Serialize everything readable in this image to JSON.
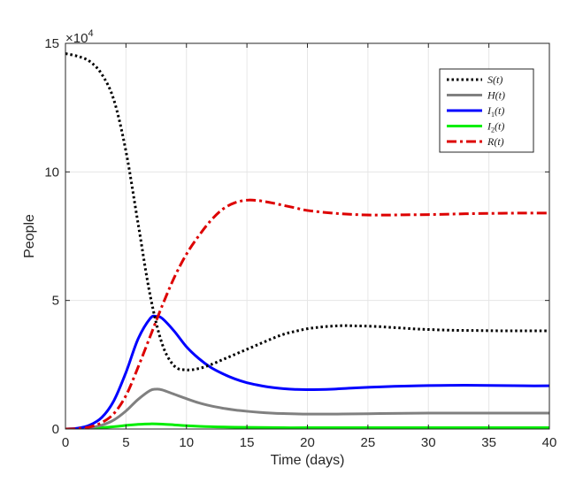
{
  "chart_data": {
    "type": "line",
    "xlabel": "Time (days)",
    "ylabel": "People",
    "xlim": [
      0,
      40
    ],
    "ylim": [
      0,
      150000
    ],
    "xticks": [
      0,
      5,
      10,
      15,
      20,
      25,
      30,
      35,
      40
    ],
    "yticks": [
      0,
      50000,
      100000,
      150000
    ],
    "ytick_labels": [
      "0",
      "5",
      "10",
      "15"
    ],
    "y_multiplier": "×10",
    "y_multiplier_exp": "4",
    "grid": true,
    "legend_position": "top-right",
    "series": [
      {
        "name": "S(t)",
        "legend": {
          "base": "S",
          "sub": "",
          "arg": "(t)"
        },
        "color": "#000000",
        "style": "dotted",
        "points": [
          [
            0,
            146000
          ],
          [
            1,
            145000
          ],
          [
            2,
            143000
          ],
          [
            3,
            138000
          ],
          [
            4,
            128000
          ],
          [
            5,
            108000
          ],
          [
            6,
            80000
          ],
          [
            7,
            52000
          ],
          [
            8,
            33000
          ],
          [
            9,
            24500
          ],
          [
            10,
            23000
          ],
          [
            11,
            23500
          ],
          [
            12,
            25000
          ],
          [
            13,
            27000
          ],
          [
            14,
            29000
          ],
          [
            15,
            31000
          ],
          [
            16,
            33000
          ],
          [
            17,
            35000
          ],
          [
            18,
            36800
          ],
          [
            19,
            38000
          ],
          [
            20,
            39000
          ],
          [
            21,
            39600
          ],
          [
            22,
            40000
          ],
          [
            23,
            40200
          ],
          [
            24,
            40100
          ],
          [
            25,
            40000
          ],
          [
            26,
            39800
          ],
          [
            27,
            39500
          ],
          [
            28,
            39200
          ],
          [
            29,
            38900
          ],
          [
            30,
            38700
          ],
          [
            32,
            38400
          ],
          [
            34,
            38300
          ],
          [
            36,
            38200
          ],
          [
            38,
            38200
          ],
          [
            40,
            38200
          ]
        ]
      },
      {
        "name": "H(t)",
        "legend": {
          "base": "H",
          "sub": "",
          "arg": "(t)"
        },
        "color": "#808080",
        "style": "solid",
        "points": [
          [
            0,
            0
          ],
          [
            1,
            100
          ],
          [
            2,
            500
          ],
          [
            3,
            1500
          ],
          [
            4,
            3500
          ],
          [
            5,
            7000
          ],
          [
            6,
            11500
          ],
          [
            7,
            15000
          ],
          [
            7.5,
            15500
          ],
          [
            8,
            15200
          ],
          [
            9,
            13500
          ],
          [
            10,
            11800
          ],
          [
            11,
            10200
          ],
          [
            12,
            9000
          ],
          [
            13,
            8100
          ],
          [
            14,
            7400
          ],
          [
            15,
            6900
          ],
          [
            16,
            6500
          ],
          [
            17,
            6200
          ],
          [
            18,
            6000
          ],
          [
            19,
            5900
          ],
          [
            20,
            5800
          ],
          [
            22,
            5800
          ],
          [
            24,
            5900
          ],
          [
            26,
            6000
          ],
          [
            28,
            6100
          ],
          [
            30,
            6200
          ],
          [
            32,
            6200
          ],
          [
            34,
            6200
          ],
          [
            36,
            6200
          ],
          [
            38,
            6200
          ],
          [
            40,
            6200
          ]
        ]
      },
      {
        "name": "I1(t)",
        "legend": {
          "base": "I",
          "sub": "1",
          "arg": "(t)"
        },
        "color": "#0000ff",
        "style": "solid",
        "points": [
          [
            0,
            0
          ],
          [
            1,
            300
          ],
          [
            2,
            1500
          ],
          [
            3,
            4500
          ],
          [
            4,
            11000
          ],
          [
            5,
            22000
          ],
          [
            6,
            35000
          ],
          [
            7,
            43000
          ],
          [
            7.5,
            43800
          ],
          [
            8,
            43000
          ],
          [
            9,
            38000
          ],
          [
            10,
            32000
          ],
          [
            11,
            27500
          ],
          [
            12,
            24000
          ],
          [
            13,
            21500
          ],
          [
            14,
            19500
          ],
          [
            15,
            18000
          ],
          [
            16,
            17000
          ],
          [
            17,
            16200
          ],
          [
            18,
            15700
          ],
          [
            19,
            15400
          ],
          [
            20,
            15300
          ],
          [
            22,
            15500
          ],
          [
            24,
            16000
          ],
          [
            26,
            16400
          ],
          [
            28,
            16700
          ],
          [
            30,
            16900
          ],
          [
            32,
            17000
          ],
          [
            34,
            17000
          ],
          [
            36,
            16900
          ],
          [
            38,
            16800
          ],
          [
            40,
            16800
          ]
        ]
      },
      {
        "name": "I2(t)",
        "legend": {
          "base": "I",
          "sub": "2",
          "arg": "(t)"
        },
        "color": "#00ee00",
        "style": "solid",
        "points": [
          [
            0,
            0
          ],
          [
            2,
            200
          ],
          [
            4,
            900
          ],
          [
            5,
            1400
          ],
          [
            6,
            1800
          ],
          [
            7,
            2000
          ],
          [
            8,
            1900
          ],
          [
            9,
            1600
          ],
          [
            10,
            1300
          ],
          [
            12,
            900
          ],
          [
            14,
            700
          ],
          [
            16,
            600
          ],
          [
            18,
            500
          ],
          [
            20,
            500
          ],
          [
            25,
            500
          ],
          [
            30,
            500
          ],
          [
            35,
            500
          ],
          [
            40,
            500
          ]
        ]
      },
      {
        "name": "R(t)",
        "legend": {
          "base": "R",
          "sub": "",
          "arg": "(t)"
        },
        "color": "#dd0000",
        "style": "dashdot",
        "points": [
          [
            0,
            0
          ],
          [
            1,
            150
          ],
          [
            2,
            800
          ],
          [
            3,
            2500
          ],
          [
            4,
            6000
          ],
          [
            5,
            13000
          ],
          [
            6,
            24000
          ],
          [
            7,
            36000
          ],
          [
            8,
            48000
          ],
          [
            9,
            59000
          ],
          [
            10,
            68000
          ],
          [
            11,
            75000
          ],
          [
            12,
            81000
          ],
          [
            13,
            85500
          ],
          [
            14,
            88000
          ],
          [
            15,
            89000
          ],
          [
            16,
            88800
          ],
          [
            17,
            88000
          ],
          [
            18,
            87000
          ],
          [
            19,
            86000
          ],
          [
            20,
            85000
          ],
          [
            22,
            84000
          ],
          [
            24,
            83400
          ],
          [
            26,
            83200
          ],
          [
            28,
            83300
          ],
          [
            30,
            83400
          ],
          [
            32,
            83600
          ],
          [
            34,
            83800
          ],
          [
            36,
            83900
          ],
          [
            38,
            84000
          ],
          [
            40,
            84000
          ]
        ]
      }
    ]
  }
}
